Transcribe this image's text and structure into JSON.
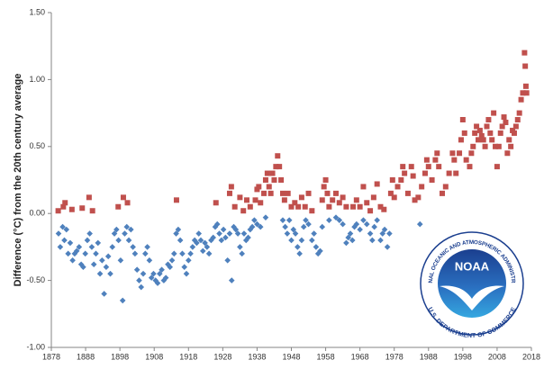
{
  "chart_data": {
    "type": "scatter",
    "y_label": "Difference (°C) from the 20th century average",
    "xlim": [
      1878,
      2018
    ],
    "xticks": [
      1878,
      1888,
      1898,
      1908,
      1918,
      1928,
      1938,
      1948,
      1958,
      1968,
      1978,
      1988,
      1998,
      2008,
      2018
    ],
    "ylim": [
      -1,
      1.5
    ],
    "yticks": [
      {
        "value": -1,
        "label": "-1.00"
      },
      {
        "value": -0.5,
        "label": "-0.50"
      },
      {
        "value": 0,
        "label": "0.00"
      },
      {
        "value": 0.5,
        "label": "0.50"
      },
      {
        "value": 1,
        "label": "1.00"
      },
      {
        "value": 1.5,
        "label": "1.50"
      }
    ],
    "grid": false,
    "logo": {
      "name": "NOAA",
      "top_text": "NATIONAL OCEANIC AND ATMOSPHERIC ADMINISTRATION",
      "bottom_text": "U.S. DEPARTMENT OF COMMERCE"
    },
    "series": [
      {
        "color": "#4f81bd",
        "marker": "diamond",
        "x": [
          1880.1,
          1880.6,
          1881.3,
          1881.8,
          1882.4,
          1882.9,
          1883.5,
          1884.2,
          1884.8,
          1885.4,
          1886.1,
          1886.7,
          1887.3,
          1887.9,
          1888.5,
          1889.2,
          1889.8,
          1890.4,
          1891.0,
          1891.6,
          1892.2,
          1892.8,
          1893.4,
          1894.0,
          1894.6,
          1895.2,
          1895.8,
          1896.4,
          1897.0,
          1897.6,
          1898.2,
          1898.8,
          1899.4,
          1900.0,
          1900.6,
          1901.2,
          1901.8,
          1902.4,
          1903.0,
          1903.6,
          1904.2,
          1904.8,
          1905.4,
          1906.0,
          1906.6,
          1907.2,
          1907.8,
          1908.4,
          1909.0,
          1909.6,
          1910.2,
          1910.8,
          1911.4,
          1912.0,
          1912.6,
          1913.2,
          1913.8,
          1914.4,
          1915.0,
          1915.6,
          1916.2,
          1916.8,
          1917.4,
          1918.0,
          1918.6,
          1919.2,
          1919.8,
          1920.4,
          1921.0,
          1921.6,
          1922.2,
          1922.8,
          1923.4,
          1924.0,
          1924.6,
          1925.2,
          1925.8,
          1926.4,
          1927.0,
          1927.6,
          1928.2,
          1928.8,
          1929.4,
          1930.0,
          1930.6,
          1931.2,
          1931.8,
          1932.4,
          1933.0,
          1933.6,
          1934.2,
          1934.8,
          1935.4,
          1936.0,
          1936.6,
          1937.2,
          1938.0,
          1939.0,
          1940.5,
          1945.5,
          1946.2,
          1946.8,
          1947.4,
          1948.0,
          1948.6,
          1949.2,
          1949.8,
          1950.4,
          1951.0,
          1951.6,
          1952.2,
          1953.0,
          1954.0,
          1954.6,
          1955.2,
          1955.8,
          1956.4,
          1957.0,
          1959.0,
          1961.0,
          1962.0,
          1963.0,
          1964.0,
          1964.6,
          1965.2,
          1965.8,
          1966.4,
          1967.0,
          1968.0,
          1969.0,
          1970.0,
          1971.0,
          1971.6,
          1972.2,
          1973.0,
          1974.0,
          1974.6,
          1975.2,
          1976.0,
          1976.6,
          1985.5
        ],
        "values": [
          -0.15,
          -0.25,
          -0.1,
          -0.2,
          -0.12,
          -0.3,
          -0.22,
          -0.35,
          -0.3,
          -0.28,
          -0.25,
          -0.38,
          -0.4,
          -0.3,
          -0.2,
          -0.15,
          -0.25,
          -0.38,
          -0.3,
          -0.22,
          -0.45,
          -0.35,
          -0.6,
          -0.4,
          -0.32,
          -0.45,
          -0.25,
          -0.15,
          -0.12,
          -0.2,
          -0.35,
          -0.65,
          -0.15,
          -0.1,
          -0.2,
          -0.12,
          -0.25,
          -0.3,
          -0.42,
          -0.5,
          -0.55,
          -0.45,
          -0.3,
          -0.25,
          -0.35,
          -0.48,
          -0.45,
          -0.5,
          -0.52,
          -0.45,
          -0.42,
          -0.5,
          -0.48,
          -0.38,
          -0.4,
          -0.35,
          -0.3,
          -0.15,
          -0.12,
          -0.2,
          -0.3,
          -0.4,
          -0.45,
          -0.35,
          -0.3,
          -0.25,
          -0.2,
          -0.22,
          -0.15,
          -0.2,
          -0.28,
          -0.22,
          -0.25,
          -0.3,
          -0.2,
          -0.18,
          -0.1,
          -0.08,
          -0.15,
          -0.2,
          -0.12,
          -0.18,
          -0.35,
          -0.15,
          -0.5,
          -0.1,
          -0.12,
          -0.15,
          -0.25,
          -0.3,
          -0.15,
          -0.2,
          -0.18,
          -0.12,
          -0.1,
          -0.05,
          -0.08,
          -0.1,
          -0.03,
          -0.05,
          -0.1,
          -0.15,
          -0.05,
          -0.2,
          -0.12,
          -0.15,
          -0.25,
          -0.3,
          -0.2,
          -0.1,
          -0.05,
          -0.08,
          -0.2,
          -0.15,
          -0.25,
          -0.3,
          -0.28,
          -0.1,
          -0.05,
          -0.03,
          -0.05,
          -0.08,
          -0.22,
          -0.18,
          -0.15,
          -0.2,
          -0.1,
          -0.08,
          -0.12,
          -0.05,
          -0.08,
          -0.15,
          -0.2,
          -0.1,
          -0.05,
          -0.2,
          -0.15,
          -0.12,
          -0.25,
          -0.15,
          -0.08
        ]
      },
      {
        "color": "#c0504d",
        "marker": "square",
        "x": [
          1880.0,
          1881.5,
          1882.0,
          1884.0,
          1887.0,
          1889.0,
          1890.0,
          1897.5,
          1899.0,
          1900.2,
          1914.5,
          1926.0,
          1930.0,
          1930.5,
          1931.5,
          1933.0,
          1934.0,
          1935.0,
          1936.0,
          1937.5,
          1938.0,
          1938.5,
          1939.0,
          1940.0,
          1940.5,
          1941.0,
          1941.5,
          1942.0,
          1942.5,
          1943.0,
          1943.5,
          1944.0,
          1944.5,
          1945.0,
          1945.5,
          1946.0,
          1947.0,
          1948.0,
          1949.0,
          1950.0,
          1951.0,
          1952.0,
          1953.0,
          1954.0,
          1957.0,
          1957.5,
          1958.0,
          1958.5,
          1959.0,
          1960.0,
          1961.0,
          1962.0,
          1963.0,
          1964.0,
          1966.0,
          1967.0,
          1968.0,
          1969.0,
          1970.0,
          1971.0,
          1972.0,
          1973.0,
          1974.0,
          1975.0,
          1977.0,
          1977.5,
          1978.0,
          1979.0,
          1980.0,
          1980.5,
          1981.0,
          1982.0,
          1983.0,
          1983.5,
          1984.0,
          1985.0,
          1986.0,
          1987.0,
          1987.5,
          1988.0,
          1989.0,
          1990.0,
          1990.5,
          1991.0,
          1992.0,
          1993.0,
          1994.0,
          1995.0,
          1995.5,
          1996.0,
          1997.0,
          1997.5,
          1998.0,
          1998.5,
          1999.0,
          2000.0,
          2000.5,
          2001.0,
          2001.5,
          2002.0,
          2002.5,
          2003.0,
          2003.5,
          2004.0,
          2004.5,
          2005.0,
          2005.5,
          2006.0,
          2006.5,
          2007.0,
          2007.5,
          2008.0,
          2008.5,
          2009.0,
          2009.5,
          2010.0,
          2010.5,
          2011.0,
          2011.5,
          2012.0,
          2012.5,
          2013.0,
          2013.5,
          2014.0,
          2014.5,
          2015.0,
          2015.5,
          2016.0,
          2016.2,
          2016.4,
          2016.6
        ],
        "values": [
          0.02,
          0.05,
          0.08,
          0.03,
          0.04,
          0.12,
          0.02,
          0.05,
          0.12,
          0.08,
          0.1,
          0.08,
          0.15,
          0.2,
          0.05,
          0.12,
          0.02,
          0.1,
          0.05,
          0.1,
          0.18,
          0.2,
          0.08,
          0.15,
          0.25,
          0.3,
          0.2,
          0.15,
          0.3,
          0.25,
          0.35,
          0.43,
          0.35,
          0.25,
          0.15,
          0.1,
          0.15,
          0.05,
          0.08,
          0.05,
          0.12,
          0.05,
          0.15,
          0.02,
          0.1,
          0.2,
          0.25,
          0.15,
          0.05,
          0.1,
          0.15,
          0.08,
          0.12,
          0.05,
          0.05,
          0.1,
          0.05,
          0.2,
          0.08,
          0.02,
          0.12,
          0.22,
          0.05,
          0.03,
          0.15,
          0.25,
          0.12,
          0.2,
          0.25,
          0.35,
          0.3,
          0.15,
          0.35,
          0.28,
          0.1,
          0.12,
          0.2,
          0.3,
          0.4,
          0.35,
          0.25,
          0.4,
          0.45,
          0.35,
          0.15,
          0.2,
          0.3,
          0.45,
          0.4,
          0.3,
          0.45,
          0.55,
          0.7,
          0.6,
          0.4,
          0.35,
          0.45,
          0.5,
          0.6,
          0.65,
          0.55,
          0.62,
          0.58,
          0.55,
          0.5,
          0.65,
          0.7,
          0.6,
          0.55,
          0.75,
          0.5,
          0.35,
          0.5,
          0.6,
          0.65,
          0.72,
          0.68,
          0.45,
          0.55,
          0.5,
          0.62,
          0.6,
          0.65,
          0.7,
          0.75,
          0.85,
          0.9,
          1.2,
          1.1,
          0.95,
          0.9
        ]
      }
    ]
  }
}
